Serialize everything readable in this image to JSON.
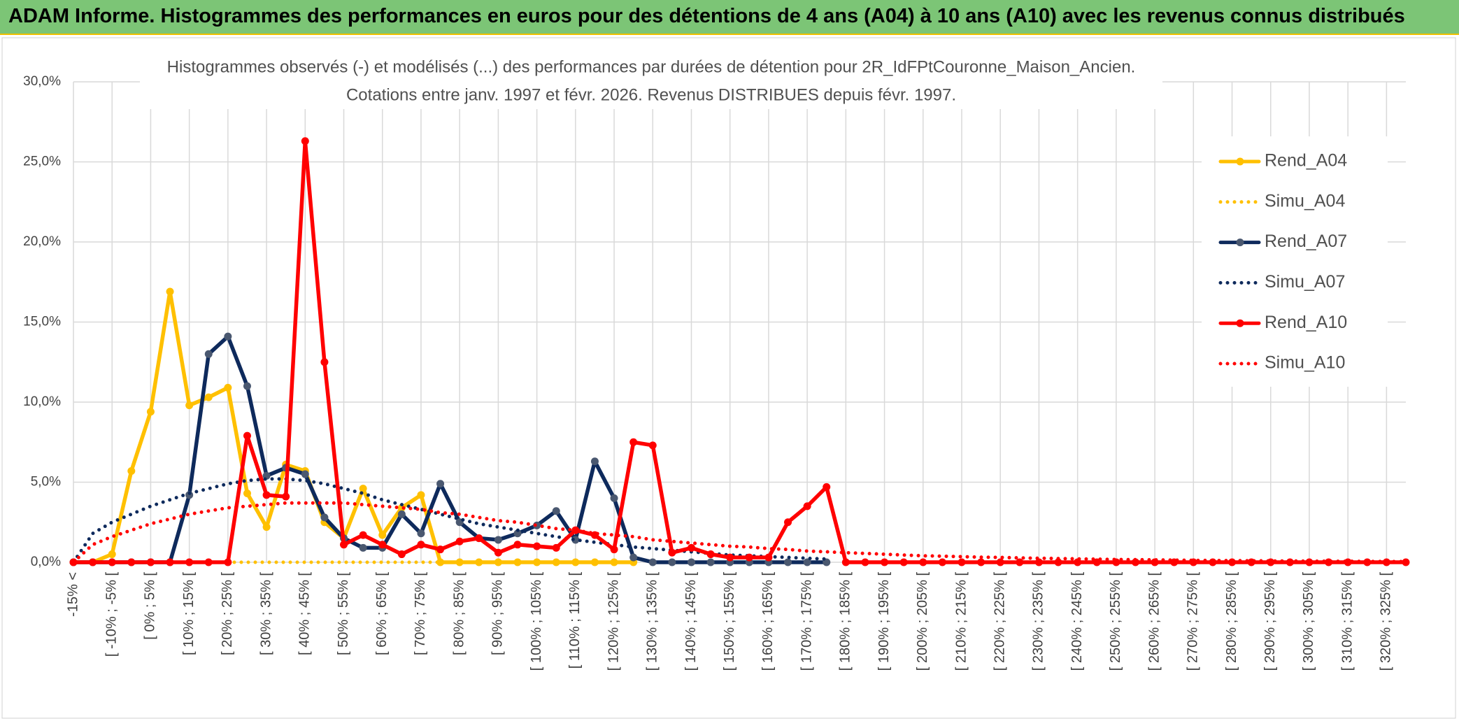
{
  "header": {
    "title": "ADAM Informe. Histogrammes des performances en euros pour des détentions de 4 ans (A04) à 10 ans (A10) avec les revenus connus distribués"
  },
  "chart_data": {
    "type": "line",
    "title": "Histogrammes observés (-) et modélisés (...) des performances par durées de détention pour 2R_IdFPtCouronne_Maison_Ancien.",
    "subtitle": "Cotations entre janv. 1997 et févr. 2026. Revenus DISTRIBUES depuis févr. 1997.",
    "categories": [
      "-15% <",
      null,
      "[ -10% ; -5% [",
      null,
      "[ 0% ; 5% [",
      null,
      "[ 10% ; 15% [",
      null,
      "[ 20% ; 25% [",
      null,
      "[ 30% ; 35% [",
      null,
      "[ 40% ; 45% [",
      null,
      "[ 50% ; 55% [",
      null,
      "[ 60% ; 65% [",
      null,
      "[ 70% ; 75% [",
      null,
      "[ 80% ; 85% [",
      null,
      "[ 90% ; 95% [",
      null,
      "[ 100% ; 105% [",
      null,
      "[ 110% ; 115% [",
      null,
      "[ 120% ; 125% [",
      null,
      "[ 130% ; 135% [",
      null,
      "[ 140% ; 145% [",
      null,
      "[ 150% ; 155% [",
      null,
      "[ 160% ; 165% [",
      null,
      "[ 170% ; 175% [",
      null,
      "[ 180% ; 185% [",
      null,
      "[ 190% ; 195% [",
      null,
      "[ 200% ; 205% [",
      null,
      "[ 210% ; 215% [",
      null,
      "[ 220% ; 225% [",
      null,
      "[ 230% ; 235% [",
      null,
      "[ 240% ; 245% [",
      null,
      "[ 250% ; 255% [",
      null,
      "[ 260% ; 265% [",
      null,
      "[ 270% ; 275% [",
      null,
      "[ 280% ; 285% [",
      null,
      "[ 290% ; 295% [",
      null,
      "[ 300% ; 305% [",
      null,
      "[ 310% ; 315% [",
      null,
      "[ 320% ; 325% [",
      null
    ],
    "series": [
      {
        "name": "Rend_A04",
        "color": "#ffc000",
        "marker_color": "#ffc000",
        "style": "solid",
        "values": [
          0,
          0,
          0.5,
          5.7,
          9.4,
          16.9,
          9.8,
          10.3,
          10.9,
          4.3,
          2.2,
          6.1,
          5.7,
          2.5,
          1.5,
          4.6,
          1.7,
          3.4,
          4.2,
          0,
          0,
          0,
          0,
          0,
          0,
          0,
          0,
          0,
          0,
          0,
          null,
          null,
          null,
          null,
          null,
          null,
          null,
          null,
          null,
          null,
          null,
          null,
          null,
          null,
          null,
          null,
          null,
          null,
          null,
          null,
          null,
          null,
          null,
          null,
          null,
          null,
          null,
          null,
          null,
          null,
          null,
          null,
          null,
          null,
          null,
          null,
          null,
          null,
          null,
          null
        ]
      },
      {
        "name": "Simu_A04",
        "color": "#ffc000",
        "style": "dotted",
        "values": [
          0,
          0,
          0,
          0,
          0,
          0,
          0,
          0,
          0,
          0,
          0,
          0,
          0,
          0,
          0,
          0,
          0,
          0,
          0,
          0,
          0,
          0,
          0,
          0,
          0,
          0,
          0,
          0,
          0,
          0,
          null,
          null,
          null,
          null,
          null,
          null,
          null,
          null,
          null,
          null,
          null,
          null,
          null,
          null,
          null,
          null,
          null,
          null,
          null,
          null,
          null,
          null,
          null,
          null,
          null,
          null,
          null,
          null,
          null,
          null,
          null,
          null,
          null,
          null,
          null,
          null,
          null,
          null,
          null,
          null
        ]
      },
      {
        "name": "Rend_A07",
        "color": "#0e2a5c",
        "marker_color": "#4a5870",
        "style": "solid",
        "values": [
          0,
          0,
          0,
          0,
          0,
          0,
          4.2,
          13.0,
          14.1,
          11.0,
          5.4,
          5.9,
          5.5,
          2.8,
          1.5,
          0.9,
          0.9,
          3.0,
          1.8,
          4.9,
          2.5,
          1.5,
          1.4,
          1.8,
          2.3,
          3.2,
          1.4,
          6.3,
          4.0,
          0.3,
          0,
          0,
          0,
          0,
          0,
          0,
          0,
          0,
          0,
          0,
          null,
          null,
          null,
          null,
          null,
          null,
          null,
          null,
          null,
          null,
          null,
          null,
          null,
          null,
          null,
          null,
          null,
          null,
          null,
          null,
          null,
          null,
          null,
          null,
          null,
          null,
          null,
          null,
          null,
          null
        ]
      },
      {
        "name": "Simu_A07",
        "color": "#0e2a5c",
        "style": "dotted",
        "values": [
          0,
          1.8,
          2.5,
          3.0,
          3.5,
          3.9,
          4.3,
          4.6,
          4.9,
          5.1,
          5.2,
          5.2,
          5.1,
          4.9,
          4.6,
          4.3,
          3.9,
          3.6,
          3.3,
          3.0,
          2.7,
          2.4,
          2.2,
          2.0,
          1.8,
          1.6,
          1.4,
          1.25,
          1.1,
          0.95,
          0.85,
          0.75,
          0.65,
          0.55,
          0.45,
          0.4,
          0.35,
          0.3,
          0.25,
          0.2,
          null,
          null,
          null,
          null,
          null,
          null,
          null,
          null,
          null,
          null,
          null,
          null,
          null,
          null,
          null,
          null,
          null,
          null,
          null,
          null,
          null,
          null,
          null,
          null,
          null,
          null,
          null,
          null,
          null,
          null
        ]
      },
      {
        "name": "Rend_A10",
        "color": "#ff0000",
        "marker_color": "#ff0000",
        "style": "solid",
        "values": [
          0,
          0,
          0,
          0,
          0,
          0,
          0,
          0,
          0,
          7.9,
          4.2,
          4.1,
          26.3,
          12.5,
          1.1,
          1.7,
          1.1,
          0.5,
          1.1,
          0.8,
          1.3,
          1.5,
          0.6,
          1.1,
          1.0,
          0.9,
          2.0,
          1.7,
          0.8,
          7.5,
          7.3,
          0.6,
          0.9,
          0.5,
          0.3,
          0.3,
          0.3,
          2.5,
          3.5,
          4.7,
          0,
          0,
          0,
          0,
          0,
          0,
          0,
          0,
          0,
          0,
          0,
          0,
          0,
          0,
          0,
          0,
          0,
          0,
          0,
          0,
          0,
          0,
          0,
          0,
          0,
          0,
          0,
          0,
          0,
          0
        ]
      },
      {
        "name": "Simu_A10",
        "color": "#ff0000",
        "style": "dotted",
        "values": [
          0,
          1.1,
          1.6,
          2.0,
          2.4,
          2.7,
          3.0,
          3.2,
          3.4,
          3.5,
          3.6,
          3.7,
          3.7,
          3.7,
          3.7,
          3.6,
          3.5,
          3.4,
          3.3,
          3.1,
          3.0,
          2.8,
          2.6,
          2.5,
          2.3,
          2.1,
          2.0,
          1.8,
          1.7,
          1.6,
          1.4,
          1.3,
          1.2,
          1.1,
          1.0,
          0.95,
          0.85,
          0.8,
          0.7,
          0.65,
          0.6,
          0.55,
          0.5,
          0.45,
          0.4,
          0.38,
          0.35,
          0.32,
          0.3,
          0.27,
          0.25,
          0.23,
          0.21,
          0.19,
          0.17,
          0.16,
          0.15,
          0.13,
          0.12,
          0.11,
          0.1,
          0.09,
          0.08,
          0.08,
          0.07,
          0.06,
          0.06,
          0.05,
          0.05,
          0.04
        ]
      }
    ],
    "ylim": [
      0,
      30
    ],
    "yticks": [
      {
        "value": 0,
        "label": "0,0%"
      },
      {
        "value": 5,
        "label": "5,0%"
      },
      {
        "value": 10,
        "label": "10,0%"
      },
      {
        "value": 15,
        "label": "15,0%"
      },
      {
        "value": 20,
        "label": "20,0%"
      },
      {
        "value": 25,
        "label": "25,0%"
      },
      {
        "value": 30,
        "label": "30,0%"
      }
    ],
    "grid": true,
    "legend": "right"
  }
}
